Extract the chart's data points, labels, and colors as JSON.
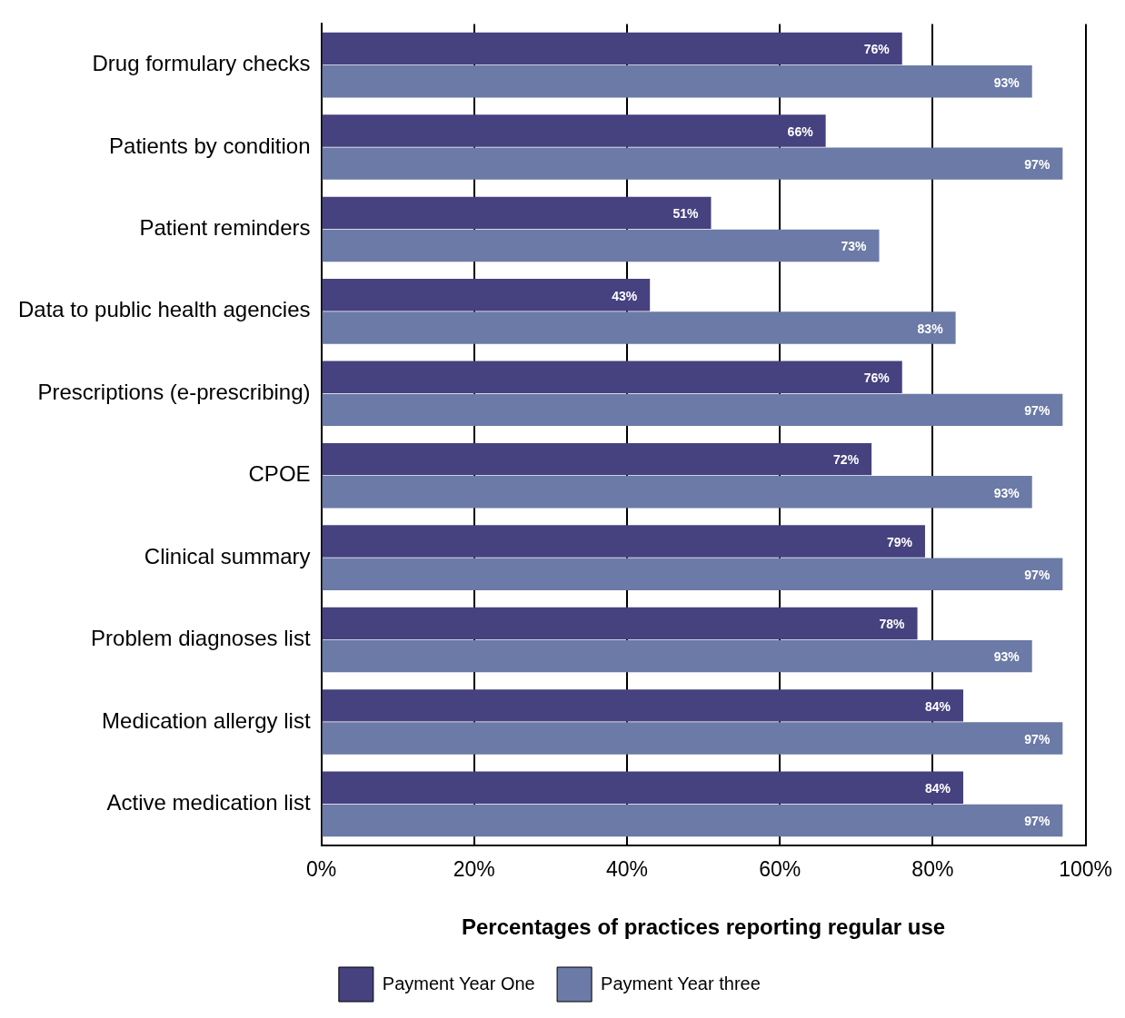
{
  "chart_data": {
    "type": "bar",
    "orientation": "horizontal",
    "xlabel": "Percentages of practices reporting regular use",
    "categories": [
      "Drug formulary checks",
      "Patients by condition",
      "Patient reminders",
      "Data to public health agencies",
      "Prescriptions (e-prescribing)",
      "CPOE",
      "Clinical summary",
      "Problem diagnoses list",
      "Medication allergy list",
      "Active medication list"
    ],
    "series": [
      {
        "name": "Payment Year One",
        "color": "#46417f",
        "values": [
          76,
          66,
          51,
          43,
          76,
          72,
          79,
          78,
          84,
          84
        ],
        "value_labels": [
          "76%",
          "66%",
          "51%",
          "43%",
          "76%",
          "72%",
          "79%",
          "78%",
          "84%",
          "84%"
        ]
      },
      {
        "name": "Payment Year three",
        "color": "#6b7aa6",
        "values": [
          93,
          97,
          73,
          83,
          97,
          93,
          97,
          93,
          97,
          97
        ],
        "value_labels": [
          "93%",
          "97%",
          "73%",
          "83%",
          "97%",
          "93%",
          "97%",
          "93%",
          "97%",
          "97%"
        ]
      }
    ],
    "xlim": [
      0,
      100
    ],
    "xticks": [
      {
        "value": 0,
        "label": "0%"
      },
      {
        "value": 20,
        "label": "20%"
      },
      {
        "value": 40,
        "label": "40%"
      },
      {
        "value": 60,
        "label": "60%"
      },
      {
        "value": 80,
        "label": "80%"
      },
      {
        "value": 100,
        "label": "100%"
      }
    ],
    "grid": "x",
    "legend": "bottom"
  }
}
